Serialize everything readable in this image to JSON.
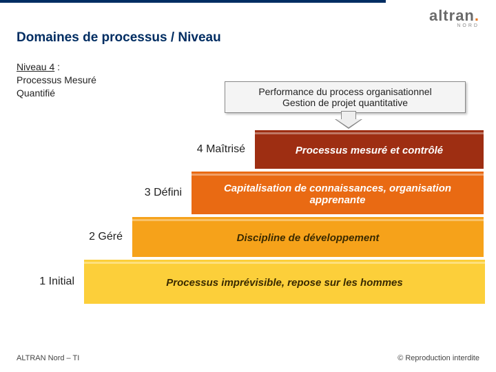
{
  "brand": {
    "name": "altran",
    "sub": "NORD"
  },
  "title": "Domaines de processus / Niveau",
  "level_heading": {
    "line1_underlined": "Niveau 4",
    "line1_rest": " :",
    "line2": "Processus Mesuré",
    "line3": "Quantifié"
  },
  "callout": {
    "line1": "Performance du process organisationnel",
    "line2": "Gestion de projet quantitative"
  },
  "steps": {
    "s4": {
      "label": "4 Maîtrisé",
      "text": "Processus mesuré et contrôlé",
      "bg": "#9e2e12",
      "fg": "#ffffff"
    },
    "s3": {
      "label": "3 Défini",
      "text": "Capitalisation de connaissances, organisation apprenante",
      "bg": "#e96a13",
      "fg": "#ffffff"
    },
    "s2": {
      "label": "2 Géré",
      "text": "Discipline de développement",
      "bg": "#f6a21a",
      "fg": "#3a2a00"
    },
    "s1": {
      "label": "1 Initial",
      "text": "Processus imprévisible, repose sur les hommes",
      "bg": "#fccf3a",
      "fg": "#3a2a00"
    }
  },
  "footer": {
    "left": "ALTRAN Nord – TI",
    "right": "© Reproduction interdite"
  },
  "colors": {
    "accent": "#002d62",
    "title": "#002d62"
  }
}
